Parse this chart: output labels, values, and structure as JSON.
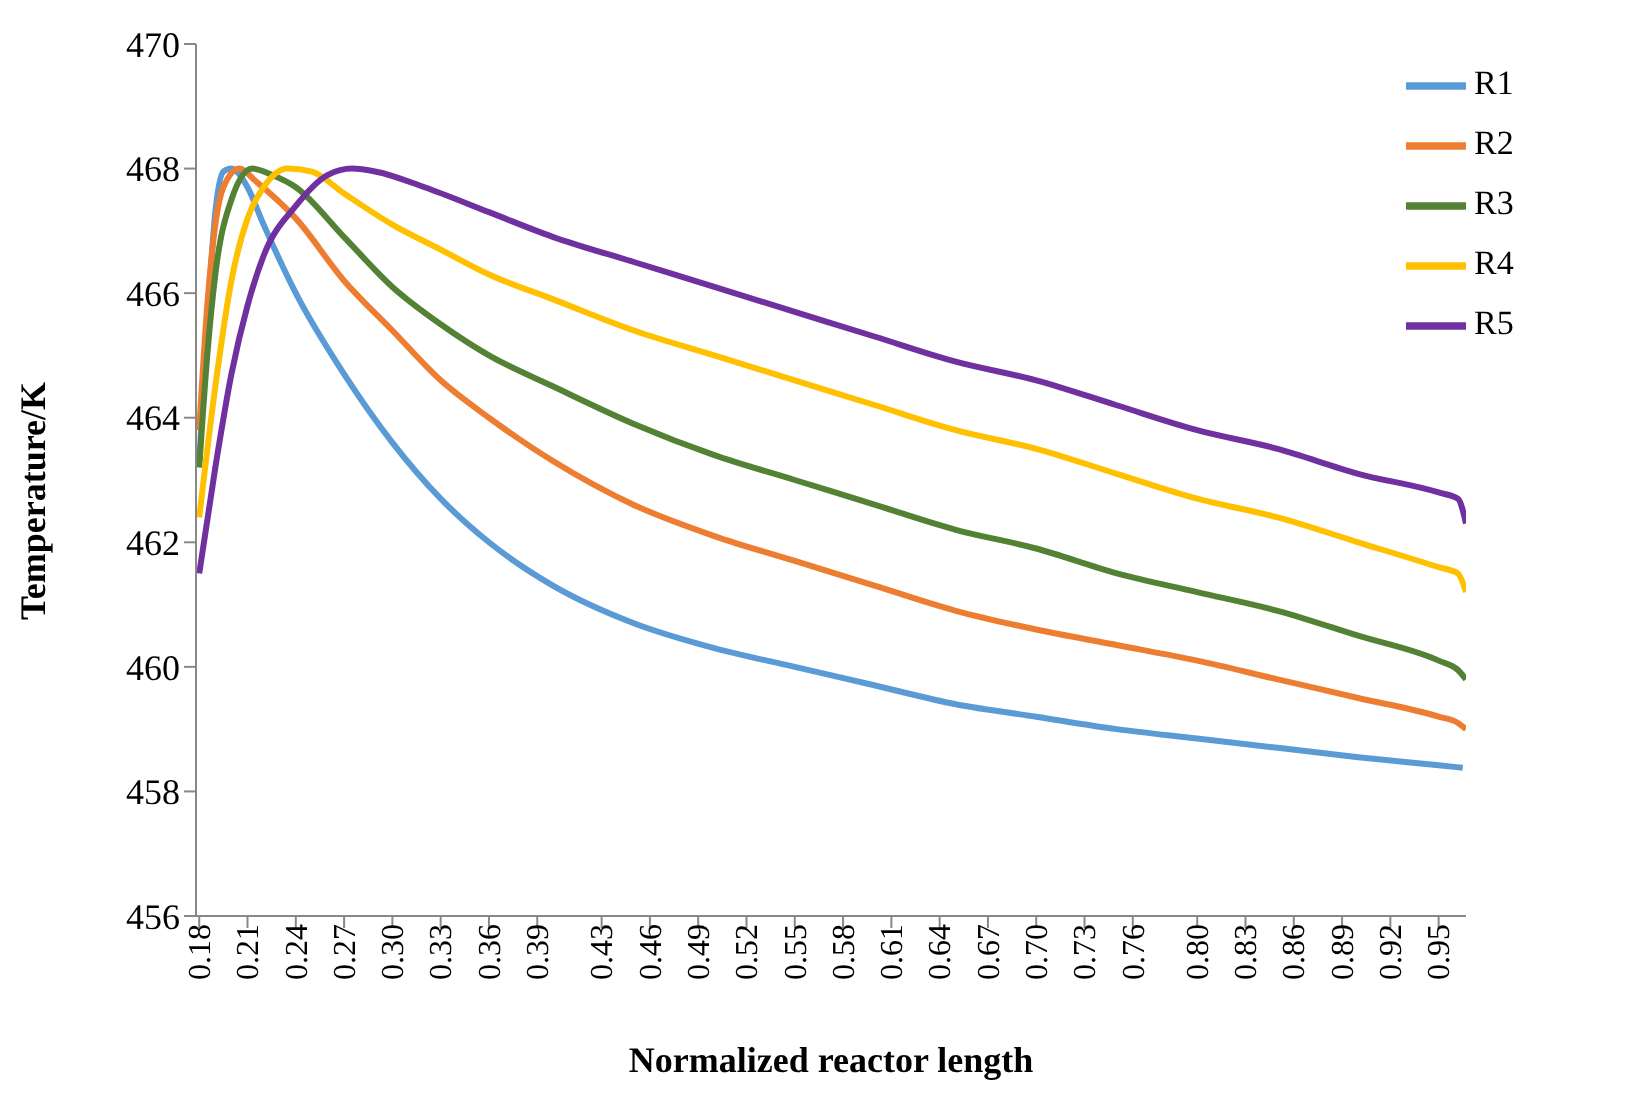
{
  "chart_data": {
    "type": "line",
    "xlabel": "Normalized reactor length",
    "ylabel": "Temperature/K",
    "xlim": [
      0.178,
      0.967
    ],
    "ylim": [
      456,
      470
    ],
    "yticks": [
      456,
      458,
      460,
      462,
      464,
      466,
      468,
      470
    ],
    "xticks": [
      0.18,
      0.21,
      0.24,
      0.27,
      {
        "value": 0.3,
        "label": "0.30"
      },
      0.33,
      0.36,
      0.39,
      0.43,
      0.46,
      0.49,
      0.52,
      0.55,
      0.58,
      0.61,
      0.64,
      0.67,
      {
        "value": 0.7,
        "label": "0.70"
      },
      0.73,
      0.76,
      {
        "value": 0.8,
        "label": "0.80"
      },
      0.83,
      0.86,
      0.89,
      0.92,
      0.95
    ],
    "grid": false,
    "legend": "top right",
    "marker": "none",
    "line_style": "solid",
    "series": [
      {
        "name": "R1",
        "color": "#5b9bd5",
        "x": [
          0.18,
          0.185,
          0.19,
          0.195,
          0.2,
          0.21,
          0.22,
          0.24,
          0.27,
          0.3,
          0.33,
          0.36,
          0.4,
          0.45,
          0.5,
          0.55,
          0.6,
          0.65,
          0.7,
          0.75,
          0.8,
          0.85,
          0.9,
          0.95,
          0.965
        ],
        "values": [
          463.3,
          465.5,
          467.3,
          467.95,
          468,
          467.7,
          467.1,
          466,
          464.7,
          463.6,
          462.7,
          462,
          461.3,
          460.7,
          460.3,
          460,
          459.7,
          459.4,
          459.2,
          459,
          458.85,
          458.7,
          458.55,
          458.42,
          458.38
        ]
      },
      {
        "name": "R2",
        "color": "#ed7d31",
        "x": [
          0.18,
          0.185,
          0.19,
          0.195,
          0.205,
          0.215,
          0.24,
          0.27,
          0.3,
          0.33,
          0.36,
          0.4,
          0.45,
          0.5,
          0.55,
          0.6,
          0.65,
          0.7,
          0.75,
          0.8,
          0.85,
          0.9,
          0.95,
          0.962,
          0.967
        ],
        "values": [
          463.8,
          465.8,
          467.1,
          467.7,
          468,
          467.8,
          467.2,
          466.2,
          465.4,
          464.6,
          464,
          463.3,
          462.6,
          462.1,
          461.7,
          461.3,
          460.9,
          460.6,
          460.35,
          460.1,
          459.8,
          459.5,
          459.2,
          459.1,
          459
        ]
      },
      {
        "name": "R3",
        "color": "#548235",
        "x": [
          0.18,
          0.185,
          0.19,
          0.2,
          0.213,
          0.225,
          0.24,
          0.27,
          0.3,
          0.33,
          0.36,
          0.4,
          0.45,
          0.5,
          0.55,
          0.6,
          0.65,
          0.7,
          0.75,
          0.8,
          0.85,
          0.9,
          0.95,
          0.962,
          0.967
        ],
        "values": [
          463.2,
          465,
          466.3,
          467.5,
          468,
          467.9,
          467.7,
          466.9,
          466.1,
          465.5,
          465,
          464.5,
          463.9,
          463.4,
          463,
          462.6,
          462.2,
          461.9,
          461.5,
          461.2,
          460.9,
          460.5,
          460.1,
          459.95,
          459.8
        ]
      },
      {
        "name": "R4",
        "color": "#ffc000",
        "x": [
          0.18,
          0.19,
          0.2,
          0.21,
          0.22,
          0.235,
          0.25,
          0.27,
          0.3,
          0.33,
          0.36,
          0.4,
          0.45,
          0.5,
          0.55,
          0.6,
          0.65,
          0.7,
          0.75,
          0.8,
          0.85,
          0.9,
          0.95,
          0.962,
          0.967
        ],
        "values": [
          462.4,
          464.5,
          466.2,
          467.2,
          467.7,
          468,
          467.95,
          467.6,
          467.1,
          466.7,
          466.3,
          465.9,
          465.4,
          465,
          464.6,
          464.2,
          463.8,
          463.5,
          463.1,
          462.7,
          462.4,
          462,
          461.6,
          461.5,
          461.2
        ]
      },
      {
        "name": "R5",
        "color": "#7030a0",
        "x": [
          0.18,
          0.19,
          0.2,
          0.21,
          0.22,
          0.24,
          0.26,
          0.275,
          0.29,
          0.32,
          0.36,
          0.4,
          0.45,
          0.5,
          0.55,
          0.6,
          0.65,
          0.7,
          0.75,
          0.8,
          0.85,
          0.9,
          0.95,
          0.962,
          0.967
        ],
        "values": [
          461.5,
          463.2,
          464.7,
          465.8,
          466.6,
          467.4,
          467.9,
          468,
          467.95,
          467.7,
          467.3,
          466.9,
          466.5,
          466.1,
          465.7,
          465.3,
          464.9,
          464.6,
          464.2,
          463.8,
          463.5,
          463.1,
          462.8,
          462.7,
          462.3
        ]
      }
    ]
  }
}
